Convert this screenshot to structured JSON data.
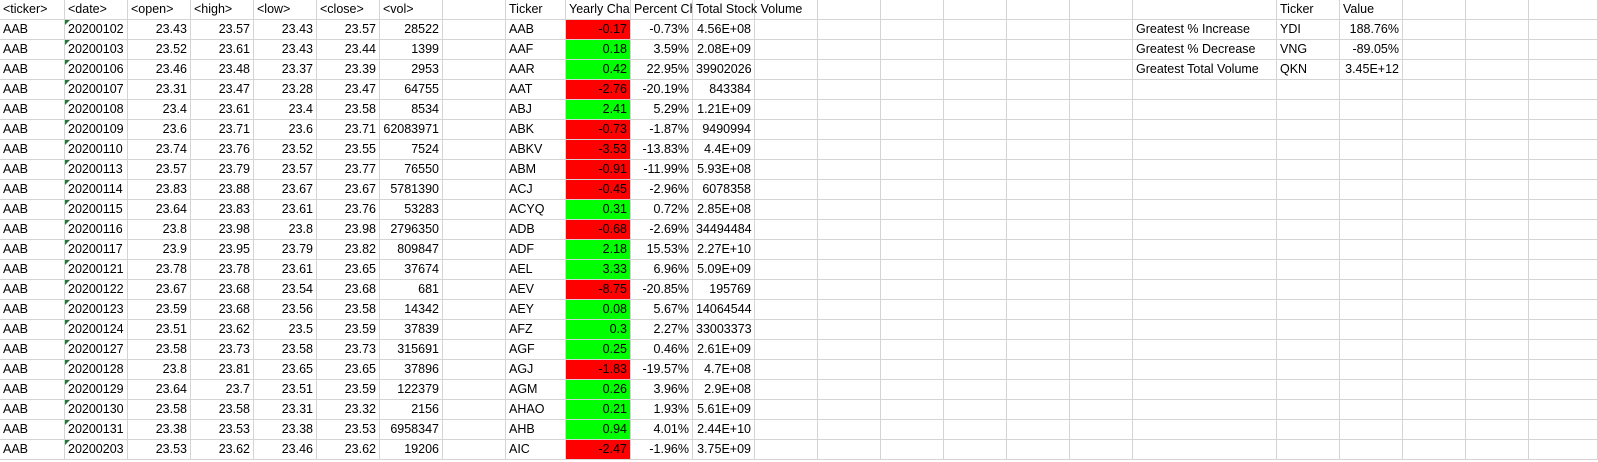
{
  "headers": {
    "ticker": "<ticker>",
    "date": "<date>",
    "open": "<open>",
    "high": "<high>",
    "low": "<low>",
    "close": "<close>",
    "vol": "<vol>",
    "summary_ticker": "Ticker",
    "yearly_change": "Yearly Change",
    "percent_change": "Percent Change",
    "total_volume": "Total Stock Volume",
    "greatest_ticker": "Ticker",
    "greatest_value": "Value"
  },
  "raw_rows": [
    [
      "AAB",
      "20200102",
      "23.43",
      "23.57",
      "23.43",
      "23.57",
      "28522"
    ],
    [
      "AAB",
      "20200103",
      "23.52",
      "23.61",
      "23.43",
      "23.44",
      "1399"
    ],
    [
      "AAB",
      "20200106",
      "23.46",
      "23.48",
      "23.37",
      "23.39",
      "2953"
    ],
    [
      "AAB",
      "20200107",
      "23.31",
      "23.47",
      "23.28",
      "23.47",
      "64755"
    ],
    [
      "AAB",
      "20200108",
      "23.4",
      "23.61",
      "23.4",
      "23.58",
      "8534"
    ],
    [
      "AAB",
      "20200109",
      "23.6",
      "23.71",
      "23.6",
      "23.71",
      "62083971"
    ],
    [
      "AAB",
      "20200110",
      "23.74",
      "23.76",
      "23.52",
      "23.55",
      "7524"
    ],
    [
      "AAB",
      "20200113",
      "23.57",
      "23.79",
      "23.57",
      "23.77",
      "76550"
    ],
    [
      "AAB",
      "20200114",
      "23.83",
      "23.88",
      "23.67",
      "23.67",
      "5781390"
    ],
    [
      "AAB",
      "20200115",
      "23.64",
      "23.83",
      "23.61",
      "23.76",
      "53283"
    ],
    [
      "AAB",
      "20200116",
      "23.8",
      "23.98",
      "23.8",
      "23.98",
      "2796350"
    ],
    [
      "AAB",
      "20200117",
      "23.9",
      "23.95",
      "23.79",
      "23.82",
      "809847"
    ],
    [
      "AAB",
      "20200121",
      "23.78",
      "23.78",
      "23.61",
      "23.65",
      "37674"
    ],
    [
      "AAB",
      "20200122",
      "23.67",
      "23.68",
      "23.54",
      "23.68",
      "681"
    ],
    [
      "AAB",
      "20200123",
      "23.59",
      "23.68",
      "23.56",
      "23.58",
      "14342"
    ],
    [
      "AAB",
      "20200124",
      "23.51",
      "23.62",
      "23.5",
      "23.59",
      "37839"
    ],
    [
      "AAB",
      "20200127",
      "23.58",
      "23.73",
      "23.58",
      "23.73",
      "315691"
    ],
    [
      "AAB",
      "20200128",
      "23.8",
      "23.81",
      "23.65",
      "23.65",
      "37896"
    ],
    [
      "AAB",
      "20200129",
      "23.64",
      "23.7",
      "23.51",
      "23.59",
      "122379"
    ],
    [
      "AAB",
      "20200130",
      "23.58",
      "23.58",
      "23.31",
      "23.32",
      "2156"
    ],
    [
      "AAB",
      "20200131",
      "23.38",
      "23.53",
      "23.38",
      "23.53",
      "6958347"
    ],
    [
      "AAB",
      "20200203",
      "23.53",
      "23.62",
      "23.46",
      "23.62",
      "19206"
    ]
  ],
  "summary_rows": [
    {
      "ticker": "AAB",
      "change": "-0.17",
      "percent": "-0.73%",
      "volume": "4.56E+08",
      "positive": false
    },
    {
      "ticker": "AAF",
      "change": "0.18",
      "percent": "3.59%",
      "volume": "2.08E+09",
      "positive": true
    },
    {
      "ticker": "AAR",
      "change": "0.42",
      "percent": "22.95%",
      "volume": "39902026",
      "positive": true
    },
    {
      "ticker": "AAT",
      "change": "-2.76",
      "percent": "-20.19%",
      "volume": "843384",
      "positive": false
    },
    {
      "ticker": "ABJ",
      "change": "2.41",
      "percent": "5.29%",
      "volume": "1.21E+09",
      "positive": true
    },
    {
      "ticker": "ABK",
      "change": "-0.73",
      "percent": "-1.87%",
      "volume": "9490994",
      "positive": false
    },
    {
      "ticker": "ABKV",
      "change": "-3.53",
      "percent": "-13.83%",
      "volume": "4.4E+09",
      "positive": false
    },
    {
      "ticker": "ABM",
      "change": "-0.91",
      "percent": "-11.99%",
      "volume": "5.93E+08",
      "positive": false
    },
    {
      "ticker": "ACJ",
      "change": "-0.45",
      "percent": "-2.96%",
      "volume": "6078358",
      "positive": false
    },
    {
      "ticker": "ACYQ",
      "change": "0.31",
      "percent": "0.72%",
      "volume": "2.85E+08",
      "positive": true
    },
    {
      "ticker": "ADB",
      "change": "-0.68",
      "percent": "-2.69%",
      "volume": "34494484",
      "positive": false
    },
    {
      "ticker": "ADF",
      "change": "2.18",
      "percent": "15.53%",
      "volume": "2.27E+10",
      "positive": true
    },
    {
      "ticker": "AEL",
      "change": "3.33",
      "percent": "6.96%",
      "volume": "5.09E+09",
      "positive": true
    },
    {
      "ticker": "AEV",
      "change": "-8.75",
      "percent": "-20.85%",
      "volume": "195769",
      "positive": false
    },
    {
      "ticker": "AEY",
      "change": "0.08",
      "percent": "5.67%",
      "volume": "14064544",
      "positive": true
    },
    {
      "ticker": "AFZ",
      "change": "0.3",
      "percent": "2.27%",
      "volume": "33003373",
      "positive": true
    },
    {
      "ticker": "AGF",
      "change": "0.25",
      "percent": "0.46%",
      "volume": "2.61E+09",
      "positive": true
    },
    {
      "ticker": "AGJ",
      "change": "-1.83",
      "percent": "-19.57%",
      "volume": "4.7E+08",
      "positive": false
    },
    {
      "ticker": "AGM",
      "change": "0.26",
      "percent": "3.96%",
      "volume": "2.9E+08",
      "positive": true
    },
    {
      "ticker": "AHAO",
      "change": "0.21",
      "percent": "1.93%",
      "volume": "5.61E+09",
      "positive": true
    },
    {
      "ticker": "AHB",
      "change": "0.94",
      "percent": "4.01%",
      "volume": "2.44E+10",
      "positive": true
    },
    {
      "ticker": "AIC",
      "change": "-2.47",
      "percent": "-1.96%",
      "volume": "3.75E+09",
      "positive": false
    }
  ],
  "greatest": [
    {
      "label": "Greatest % Increase",
      "ticker": "YDI",
      "value": "188.76%"
    },
    {
      "label": "Greatest % Decrease",
      "ticker": "VNG",
      "value": "-89.05%"
    },
    {
      "label": "Greatest Total Volume",
      "ticker": "QKN",
      "value": "3.45E+12"
    }
  ],
  "colors": {
    "positive": "#00ff00",
    "negative": "#ff0000",
    "gridline": "#d4d4d4",
    "text_number_indicator": "#1f7a3a"
  }
}
